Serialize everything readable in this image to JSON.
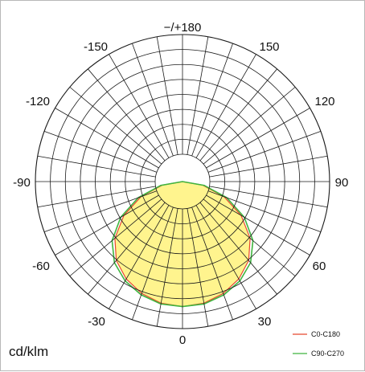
{
  "chart_data": {
    "type": "polar",
    "unit_label": "cd/klm",
    "angle_labels": [
      "−/+180",
      "150",
      "120",
      "90",
      "60",
      "30",
      "0",
      "-30",
      "-60",
      "-90",
      "-120",
      "-150"
    ],
    "grid": true,
    "legend_position": "bottom-right",
    "series": [
      {
        "name": "C0-C180",
        "color": "#e8472e",
        "fill": "#fff27a",
        "angles": [
          0,
          10,
          20,
          30,
          40,
          50,
          60,
          70,
          80,
          90,
          100,
          110,
          120,
          130,
          140,
          150,
          160,
          170,
          180,
          190,
          200,
          210,
          220,
          230,
          240,
          250,
          260,
          270,
          280,
          290,
          300,
          310,
          320,
          330,
          340,
          350
        ],
        "values": [
          170,
          168,
          162,
          153,
          140,
          120,
          92,
          60,
          28,
          0,
          0,
          0,
          0,
          0,
          0,
          0,
          0,
          0,
          0,
          0,
          0,
          0,
          0,
          0,
          0,
          0,
          0,
          0,
          28,
          60,
          92,
          120,
          140,
          153,
          162,
          168
        ]
      },
      {
        "name": "C90-C270",
        "color": "#3fb53f",
        "fill": "#fff27a",
        "angles": [
          0,
          10,
          20,
          30,
          40,
          50,
          60,
          70,
          80,
          90,
          100,
          110,
          120,
          130,
          140,
          150,
          160,
          170,
          180,
          190,
          200,
          210,
          220,
          230,
          240,
          250,
          260,
          270,
          280,
          290,
          300,
          310,
          320,
          330,
          340,
          350
        ],
        "values": [
          170,
          169,
          164,
          156,
          144,
          125,
          97,
          64,
          30,
          0,
          0,
          0,
          0,
          0,
          0,
          0,
          0,
          0,
          0,
          0,
          0,
          0,
          0,
          0,
          0,
          0,
          0,
          0,
          30,
          64,
          97,
          125,
          144,
          156,
          164,
          169
        ]
      }
    ],
    "radial_max": 200,
    "radial_rings": [
      25,
      50,
      75,
      100,
      125,
      150,
      175,
      200
    ]
  }
}
